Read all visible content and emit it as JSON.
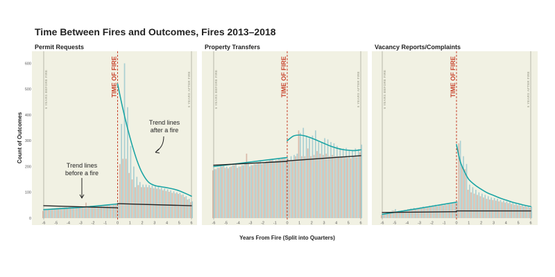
{
  "title": "Time Between Fires and Outcomes, Fires 2013–2018",
  "ylabel": "Count of Outcomes",
  "xlabel": "Years From Fire (Split into Quarters)",
  "time_of_fire_label": "TIME OF FIRE",
  "years_before_label": "6 YEARS BEFORE FIRE",
  "years_after_label": "6 YEARS AFTER FIRE",
  "annotations": {
    "after": [
      "Trend lines",
      "after a fire"
    ],
    "before": [
      "Trend lines",
      "before a fire"
    ]
  },
  "colors": {
    "panel_bg": "#f1f1e3",
    "bar_a": "#a9cfd2",
    "bar_b": "#d9b8a8",
    "trend_teal": "#1aa4a4",
    "trend_black": "#222222",
    "fire_line": "#c8442d",
    "edge_line": "#b6b6aa"
  },
  "chart_data": [
    {
      "type": "bar",
      "title": "Permit Requests",
      "xlim": [
        -6,
        6
      ],
      "ylim": [
        0,
        620
      ],
      "yticks": [
        0,
        100,
        200,
        300,
        400,
        500,
        600
      ],
      "xticks": [
        -6,
        -5,
        -4,
        -3,
        -2,
        -1,
        0,
        1,
        2,
        3,
        4,
        5,
        6
      ],
      "x_quarters": [
        -6,
        -5.75,
        -5.5,
        -5.25,
        -5,
        -4.75,
        -4.5,
        -4.25,
        -4,
        -3.75,
        -3.5,
        -3.25,
        -3,
        -2.75,
        -2.5,
        -2.25,
        -2,
        -1.75,
        -1.5,
        -1.25,
        -1,
        -0.75,
        -0.5,
        -0.25,
        0,
        0.25,
        0.5,
        0.75,
        1,
        1.25,
        1.5,
        1.75,
        2,
        2.25,
        2.5,
        2.75,
        3,
        3.25,
        3.5,
        3.75,
        4,
        4.25,
        4.5,
        4.75,
        5,
        5.25,
        5.5,
        5.75,
        6
      ],
      "series_a": [
        30,
        34,
        36,
        38,
        40,
        41,
        41,
        43,
        43,
        44,
        45,
        45,
        46,
        46,
        47,
        48,
        48,
        48,
        48,
        49,
        49,
        50,
        50,
        52,
        55,
        365,
        600,
        430,
        280,
        200,
        160,
        140,
        130,
        130,
        128,
        127,
        125,
        122,
        118,
        115,
        112,
        108,
        104,
        100,
        98,
        92,
        85,
        75,
        65
      ],
      "series_b": [
        28,
        32,
        35,
        37,
        39,
        40,
        40,
        42,
        42,
        43,
        44,
        44,
        45,
        45,
        60,
        47,
        47,
        47,
        47,
        48,
        48,
        49,
        49,
        51,
        54,
        210,
        230,
        230,
        175,
        150,
        120,
        128,
        120,
        120,
        120,
        118,
        116,
        114,
        112,
        108,
        105,
        102,
        98,
        96,
        94,
        90,
        82,
        72,
        62
      ],
      "trend_before_teal": [
        [
          -6,
          33
        ],
        [
          -3,
          42
        ],
        [
          0,
          55
        ]
      ],
      "trend_before_black": [
        [
          -6,
          48
        ],
        [
          0,
          40
        ]
      ],
      "trend_after_teal": [
        [
          0,
          520
        ],
        [
          0.4,
          430
        ],
        [
          0.8,
          350
        ],
        [
          1.2,
          280
        ],
        [
          1.6,
          220
        ],
        [
          2,
          175
        ],
        [
          2.5,
          140
        ],
        [
          3,
          127
        ],
        [
          3.5,
          122
        ],
        [
          4,
          118
        ],
        [
          4.5,
          113
        ],
        [
          5,
          106
        ],
        [
          5.5,
          96
        ],
        [
          6,
          85
        ]
      ],
      "trend_after_black": [
        [
          0,
          56
        ],
        [
          6,
          48
        ]
      ]
    },
    {
      "type": "bar",
      "title": "Property Transfers",
      "xlim": [
        -6,
        6
      ],
      "ylim": [
        0,
        620
      ],
      "xticks": [
        -6,
        -5,
        -4,
        -3,
        -2,
        -1,
        0,
        1,
        2,
        3,
        4,
        5,
        6
      ],
      "x_quarters": [
        -6,
        -5.75,
        -5.5,
        -5.25,
        -5,
        -4.75,
        -4.5,
        -4.25,
        -4,
        -3.75,
        -3.5,
        -3.25,
        -3,
        -2.75,
        -2.5,
        -2.25,
        -2,
        -1.75,
        -1.5,
        -1.25,
        -1,
        -0.75,
        -0.5,
        -0.25,
        0,
        0.25,
        0.5,
        0.75,
        1,
        1.25,
        1.5,
        1.75,
        2,
        2.25,
        2.5,
        2.75,
        3,
        3.25,
        3.5,
        3.75,
        4,
        4.25,
        4.5,
        4.75,
        5,
        5.25,
        5.5,
        5.75,
        6
      ],
      "series_a": [
        190,
        195,
        200,
        205,
        200,
        198,
        205,
        210,
        200,
        205,
        210,
        215,
        205,
        210,
        215,
        222,
        215,
        220,
        225,
        230,
        225,
        230,
        233,
        236,
        230,
        240,
        245,
        250,
        330,
        350,
        320,
        310,
        320,
        340,
        300,
        295,
        310,
        305,
        295,
        290,
        280,
        270,
        270,
        272,
        265,
        262,
        270,
        268,
        285
      ],
      "series_b": [
        185,
        190,
        195,
        200,
        195,
        193,
        200,
        205,
        195,
        200,
        205,
        250,
        200,
        205,
        210,
        217,
        210,
        215,
        220,
        225,
        220,
        225,
        228,
        231,
        225,
        225,
        225,
        240,
        340,
        240,
        240,
        270,
        240,
        245,
        260,
        250,
        245,
        250,
        240,
        245,
        240,
        240,
        240,
        238,
        235,
        232,
        240,
        238,
        255
      ],
      "trend_before_teal": [
        [
          -6,
          200
        ],
        [
          0,
          235
        ]
      ],
      "trend_before_black": [
        [
          -6,
          205
        ],
        [
          0,
          220
        ]
      ],
      "trend_after_teal": [
        [
          0,
          300
        ],
        [
          0.5,
          318
        ],
        [
          1,
          322
        ],
        [
          1.5,
          318
        ],
        [
          2,
          310
        ],
        [
          2.5,
          300
        ],
        [
          3,
          290
        ],
        [
          3.5,
          280
        ],
        [
          4,
          272
        ],
        [
          4.5,
          266
        ],
        [
          5,
          263
        ],
        [
          5.5,
          262
        ],
        [
          6,
          265
        ]
      ],
      "trend_after_black": [
        [
          0,
          222
        ],
        [
          6,
          242
        ]
      ]
    },
    {
      "type": "bar",
      "title": "Vacancy Reports/Complaints",
      "xlim": [
        -6,
        6
      ],
      "ylim": [
        0,
        620
      ],
      "xticks": [
        -6,
        -5,
        -4,
        -3,
        -2,
        -1,
        0,
        1,
        2,
        3,
        4,
        5,
        6
      ],
      "x_quarters": [
        -6,
        -5.75,
        -5.5,
        -5.25,
        -5,
        -4.75,
        -4.5,
        -4.25,
        -4,
        -3.75,
        -3.5,
        -3.25,
        -3,
        -2.75,
        -2.5,
        -2.25,
        -2,
        -1.75,
        -1.5,
        -1.25,
        -1,
        -0.75,
        -0.5,
        -0.25,
        0,
        0.25,
        0.5,
        0.75,
        1,
        1.25,
        1.5,
        1.75,
        2,
        2.25,
        2.5,
        2.75,
        3,
        3.25,
        3.5,
        3.75,
        4,
        4.25,
        4.5,
        4.75,
        5,
        5.25,
        5.5,
        5.75,
        6
      ],
      "series_a": [
        15,
        18,
        20,
        30,
        35,
        28,
        30,
        32,
        35,
        38,
        40,
        38,
        42,
        45,
        45,
        48,
        50,
        52,
        50,
        55,
        55,
        58,
        60,
        62,
        65,
        300,
        240,
        210,
        130,
        120,
        110,
        100,
        95,
        90,
        85,
        80,
        78,
        75,
        70,
        68,
        65,
        62,
        60,
        58,
        55,
        52,
        50,
        48,
        45
      ],
      "series_b": [
        12,
        15,
        18,
        25,
        30,
        25,
        28,
        30,
        32,
        35,
        36,
        35,
        38,
        40,
        40,
        42,
        45,
        48,
        46,
        50,
        50,
        52,
        55,
        57,
        60,
        290,
        200,
        190,
        110,
        100,
        95,
        90,
        85,
        80,
        75,
        72,
        70,
        68,
        65,
        62,
        60,
        58,
        55,
        52,
        50,
        48,
        45,
        44,
        40
      ],
      "trend_before_teal": [
        [
          -6,
          15
        ],
        [
          -3,
          38
        ],
        [
          0,
          62
        ]
      ],
      "trend_before_black": [
        [
          -6,
          22
        ],
        [
          0,
          25
        ]
      ],
      "trend_after_teal": [
        [
          0,
          285
        ],
        [
          0.3,
          220
        ],
        [
          0.7,
          175
        ],
        [
          1,
          150
        ],
        [
          1.5,
          128
        ],
        [
          2,
          112
        ],
        [
          2.5,
          98
        ],
        [
          3,
          88
        ],
        [
          3.5,
          78
        ],
        [
          4,
          70
        ],
        [
          4.5,
          62
        ],
        [
          5,
          56
        ],
        [
          5.5,
          50
        ],
        [
          6,
          45
        ]
      ],
      "trend_after_black": [
        [
          0,
          28
        ],
        [
          6,
          28
        ]
      ]
    }
  ]
}
